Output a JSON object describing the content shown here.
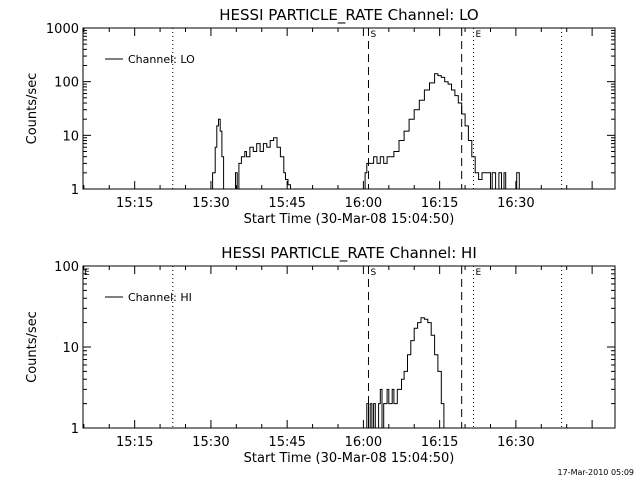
{
  "chart_data": [
    {
      "type": "line",
      "title": "HESSI PARTICLE_RATE Channel: LO",
      "xlabel": "Start Time (30-Mar-08 15:04:50)",
      "ylabel": "Counts/sec",
      "y_scale": "log",
      "xlim": [
        "15:04:50",
        "16:49:30"
      ],
      "ylim": [
        1,
        1000
      ],
      "xticks": [
        "15:15",
        "15:30",
        "15:45",
        "16:00",
        "16:15",
        "16:30"
      ],
      "yticks": [
        "1",
        "10",
        "100",
        "1000"
      ],
      "legend": {
        "entries": [
          "Channel: LO"
        ],
        "position": "top-left"
      },
      "markers": [
        {
          "time": "15:22:30",
          "style": "dotted",
          "label": ""
        },
        {
          "time": "16:01:00",
          "style": "dashed",
          "label": "S"
        },
        {
          "time": "16:19:20",
          "style": "dashed",
          "label": ""
        },
        {
          "time": "16:21:40",
          "style": "dotted",
          "label": "E"
        },
        {
          "time": "16:39:00",
          "style": "dotted",
          "label": ""
        }
      ],
      "series": [
        {
          "name": "Channel: LO",
          "x": [
            "15:29:50",
            "15:30:20",
            "15:30:50",
            "15:31:10",
            "15:31:30",
            "15:31:50",
            "15:32:10",
            "15:32:30",
            "15:33:10",
            "15:34:30",
            "15:34:50",
            "15:35:10",
            "15:35:30",
            "15:36:00",
            "15:36:40",
            "15:37:00",
            "15:37:40",
            "15:38:20",
            "15:39:00",
            "15:39:40",
            "15:40:20",
            "15:41:00",
            "15:41:40",
            "15:42:20",
            "15:43:00",
            "15:43:40",
            "15:44:20",
            "15:44:40",
            "15:45:10",
            "15:45:40",
            "15:46:10",
            "16:00:20",
            "16:00:40",
            "16:01:20",
            "16:02:00",
            "16:02:40",
            "16:03:20",
            "16:04:00",
            "16:04:40",
            "16:05:20",
            "16:06:00",
            "16:07:00",
            "16:08:00",
            "16:09:00",
            "16:10:00",
            "16:11:00",
            "16:12:00",
            "16:13:00",
            "16:14:00",
            "16:14:40",
            "16:15:20",
            "16:16:00",
            "16:16:40",
            "16:17:20",
            "16:18:00",
            "16:18:40",
            "16:19:20",
            "16:20:00",
            "16:20:40",
            "16:21:20",
            "16:22:00",
            "16:22:40",
            "16:23:20",
            "16:24:00",
            "16:24:40",
            "16:25:00",
            "16:25:20",
            "16:25:40",
            "16:26:00",
            "16:26:20",
            "16:26:40",
            "16:27:10",
            "16:27:40",
            "16:28:00",
            "16:28:20",
            "16:28:40",
            "16:29:40",
            "16:30:10",
            "16:30:40"
          ],
          "y": [
            1,
            2,
            6,
            15,
            20,
            12,
            4,
            1,
            1,
            1,
            2,
            1,
            3,
            4,
            5,
            4,
            6,
            5,
            7,
            5,
            7,
            6,
            8,
            9,
            6,
            4,
            2,
            1.5,
            1.2,
            1,
            1,
            2,
            3,
            3,
            4,
            3,
            4,
            3,
            4,
            4,
            5,
            8,
            12,
            20,
            30,
            45,
            70,
            95,
            140,
            130,
            120,
            100,
            90,
            70,
            55,
            40,
            25,
            15,
            8,
            4,
            2,
            1.5,
            2,
            2,
            2,
            1,
            2,
            2,
            1,
            1,
            2,
            1,
            2,
            1,
            1,
            1,
            1,
            2,
            1
          ]
        }
      ]
    },
    {
      "type": "line",
      "title": "HESSI PARTICLE_RATE Channel: HI",
      "xlabel": "Start Time (30-Mar-08 15:04:50)",
      "ylabel": "Counts/sec",
      "y_scale": "log",
      "xlim": [
        "15:04:50",
        "16:49:30"
      ],
      "ylim": [
        1,
        100
      ],
      "xticks": [
        "15:15",
        "15:30",
        "15:45",
        "16:00",
        "16:15",
        "16:30"
      ],
      "yticks": [
        "1",
        "10",
        "100"
      ],
      "legend": {
        "entries": [
          "Channel: HI"
        ],
        "position": "top-left"
      },
      "corner_label": "E",
      "markers": [
        {
          "time": "15:22:30",
          "style": "dotted",
          "label": ""
        },
        {
          "time": "16:01:00",
          "style": "dashed",
          "label": "S"
        },
        {
          "time": "16:19:20",
          "style": "dashed",
          "label": ""
        },
        {
          "time": "16:21:40",
          "style": "dotted",
          "label": "E"
        },
        {
          "time": "16:39:00",
          "style": "dotted",
          "label": ""
        }
      ],
      "series": [
        {
          "name": "Channel: HI",
          "x": [
            "16:00:20",
            "16:00:40",
            "16:01:00",
            "16:01:20",
            "16:01:40",
            "16:02:00",
            "16:02:20",
            "16:02:40",
            "16:03:00",
            "16:03:20",
            "16:03:40",
            "16:04:00",
            "16:04:20",
            "16:04:40",
            "16:05:00",
            "16:05:20",
            "16:05:40",
            "16:06:00",
            "16:06:20",
            "16:06:40",
            "16:07:00",
            "16:07:30",
            "16:08:00",
            "16:08:40",
            "16:09:20",
            "16:10:00",
            "16:10:40",
            "16:11:20",
            "16:12:00",
            "16:12:40",
            "16:13:20",
            "16:14:00",
            "16:14:40",
            "16:15:20",
            "16:15:50"
          ],
          "y": [
            1,
            2,
            1,
            2,
            1,
            2,
            1,
            1,
            2,
            3,
            1,
            2,
            2,
            3,
            2,
            2,
            3,
            2,
            2,
            3,
            3,
            4,
            5,
            8,
            12,
            17,
            20,
            23,
            22,
            20,
            14,
            8,
            5,
            2,
            1
          ]
        }
      ]
    }
  ],
  "footer": {
    "timestamp": "17-Mar-2010 05:09"
  }
}
